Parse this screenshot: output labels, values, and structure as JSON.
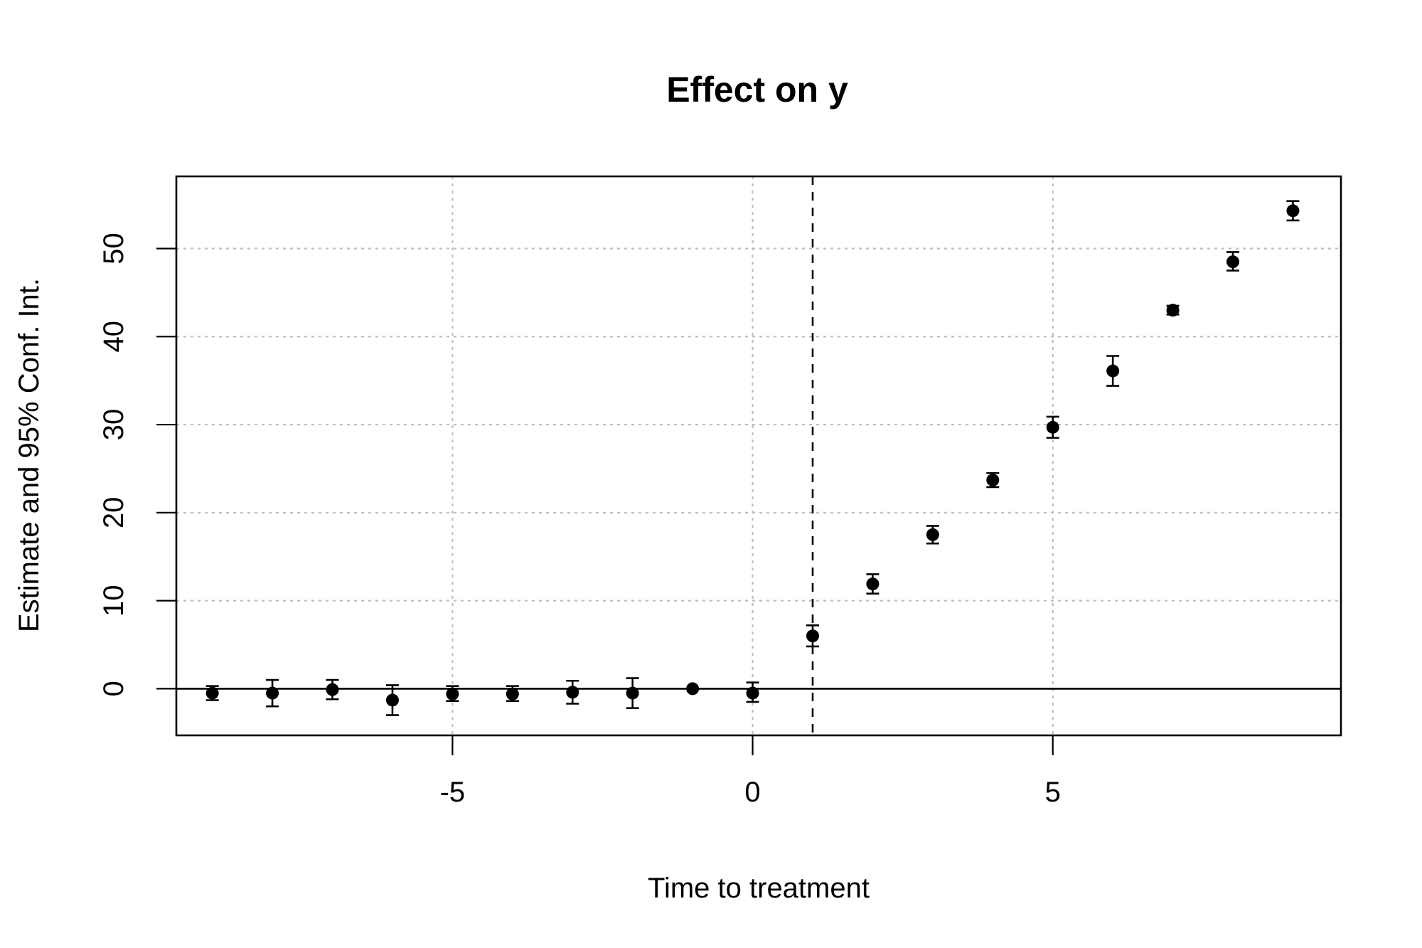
{
  "chart_data": {
    "type": "scatter",
    "subtype": "coefficient plot with error bars",
    "title": "Effect on y",
    "xlabel": "Time to treatment",
    "ylabel": "Estimate and 95% Conf. Int.",
    "xlim": [
      -9.6,
      9.8
    ],
    "ylim": [
      -5.3,
      58.2
    ],
    "x_ticks": [
      -5,
      0,
      5
    ],
    "y_ticks": [
      0,
      10,
      20,
      30,
      40,
      50
    ],
    "grid": true,
    "reference_hline": 0,
    "reference_vline": 1,
    "points": [
      {
        "x": -9,
        "y": -0.5,
        "lo": -1.3,
        "hi": 0.3
      },
      {
        "x": -8,
        "y": -0.5,
        "lo": -2.0,
        "hi": 1.0
      },
      {
        "x": -7,
        "y": -0.1,
        "lo": -1.2,
        "hi": 1.0
      },
      {
        "x": -6,
        "y": -1.3,
        "lo": -3.0,
        "hi": 0.4
      },
      {
        "x": -5,
        "y": -0.6,
        "lo": -1.4,
        "hi": 0.3
      },
      {
        "x": -4,
        "y": -0.6,
        "lo": -1.4,
        "hi": 0.3
      },
      {
        "x": -3,
        "y": -0.4,
        "lo": -1.7,
        "hi": 0.9
      },
      {
        "x": -2,
        "y": -0.5,
        "lo": -2.2,
        "hi": 1.2
      },
      {
        "x": -1,
        "y": 0.0,
        "lo": 0.0,
        "hi": 0.0
      },
      {
        "x": 0,
        "y": -0.5,
        "lo": -1.5,
        "hi": 0.7
      },
      {
        "x": 1,
        "y": 6.0,
        "lo": 4.8,
        "hi": 7.2
      },
      {
        "x": 2,
        "y": 11.9,
        "lo": 10.8,
        "hi": 13.0
      },
      {
        "x": 3,
        "y": 17.5,
        "lo": 16.5,
        "hi": 18.5
      },
      {
        "x": 4,
        "y": 23.7,
        "lo": 22.9,
        "hi": 24.5
      },
      {
        "x": 5,
        "y": 29.7,
        "lo": 28.5,
        "hi": 30.9
      },
      {
        "x": 6,
        "y": 36.1,
        "lo": 34.4,
        "hi": 37.8
      },
      {
        "x": 7,
        "y": 43.0,
        "lo": 42.5,
        "hi": 43.5
      },
      {
        "x": 8,
        "y": 48.5,
        "lo": 47.5,
        "hi": 49.6
      },
      {
        "x": 9,
        "y": 54.3,
        "lo": 53.2,
        "hi": 55.4
      }
    ]
  }
}
